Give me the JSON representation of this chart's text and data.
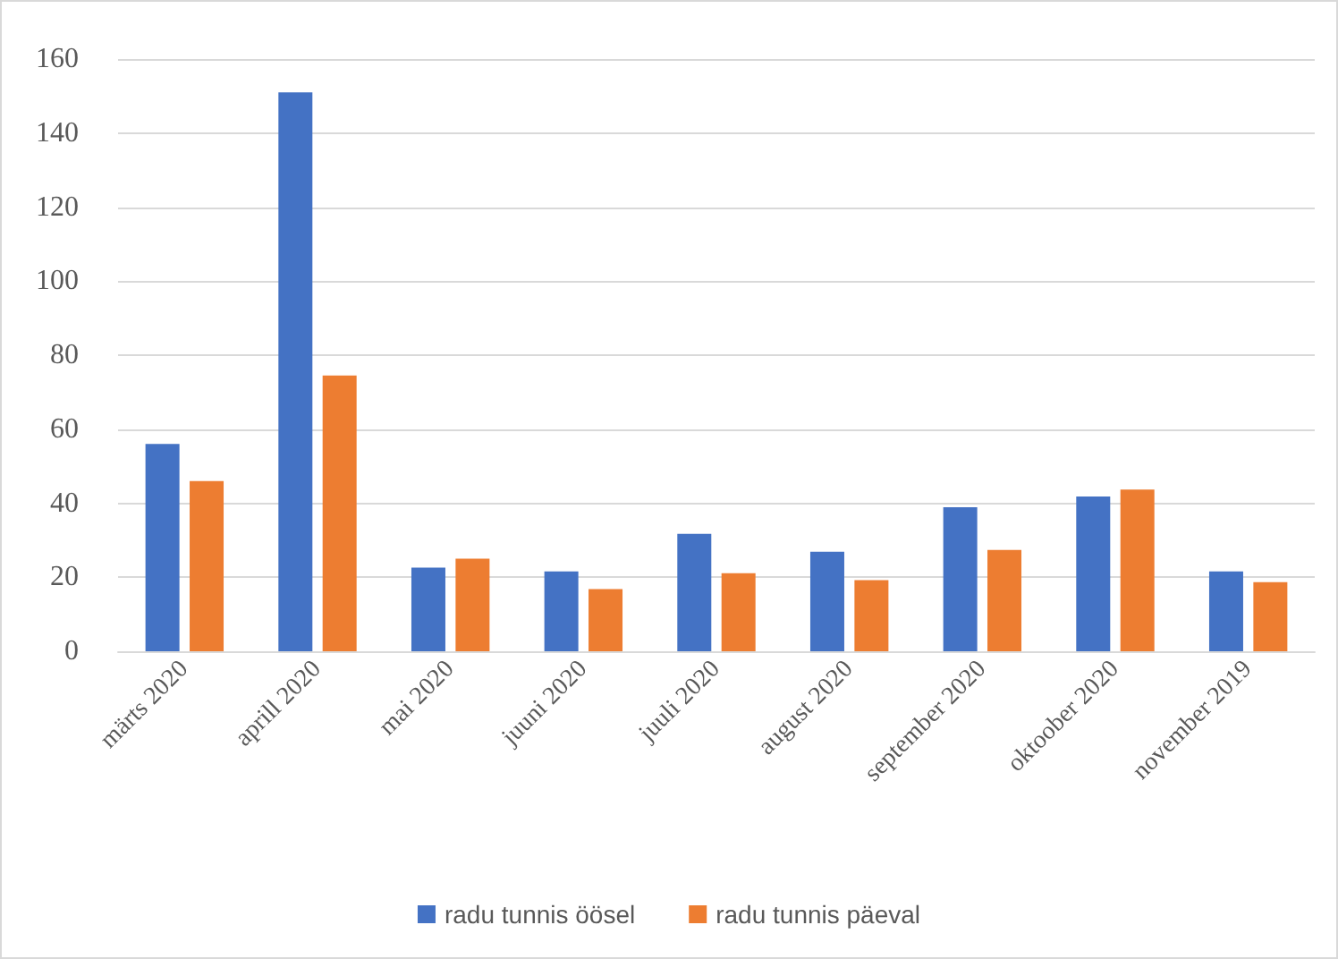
{
  "chart_data": {
    "type": "bar",
    "categories": [
      "märts 2020",
      "aprill 2020",
      "mai 2020",
      "juuni 2020",
      "juuli 2020",
      "august 2020",
      "september 2020",
      "oktoober 2020",
      "november 2019"
    ],
    "series": [
      {
        "name": "radu tunnis öösel",
        "color": "#4472c4",
        "values": [
          56,
          151,
          22.6,
          21.6,
          31.7,
          26.9,
          38.9,
          41.8,
          21.6
        ]
      },
      {
        "name": "radu tunnis päeval",
        "color": "#ed7d31",
        "values": [
          46,
          74.5,
          25,
          16.8,
          21.1,
          19.2,
          27.4,
          43.7,
          18.7
        ]
      }
    ],
    "ylim": [
      0,
      160
    ],
    "yticks": [
      0,
      20,
      40,
      60,
      80,
      100,
      120,
      140,
      160
    ],
    "grid": "y",
    "legend": "bottom"
  }
}
